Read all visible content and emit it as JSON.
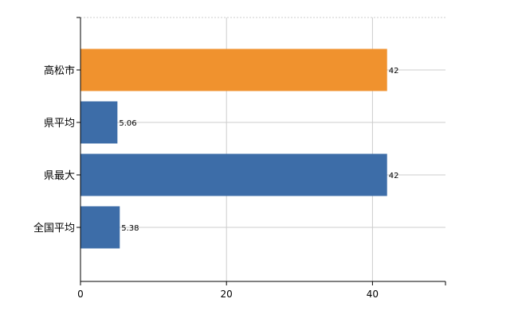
{
  "chart_data": {
    "type": "bar",
    "orientation": "horizontal",
    "categories": [
      "高松市",
      "県平均",
      "県最大",
      "全国平均"
    ],
    "values": [
      42,
      5.06,
      42,
      5.38
    ],
    "value_labels": [
      "42",
      "5.06",
      "42",
      "5.38"
    ],
    "bar_colors": [
      "#f0922e",
      "#3d6da8",
      "#3d6da8",
      "#3d6da8"
    ],
    "xlim": [
      0,
      50
    ],
    "xticks": [
      0,
      20,
      40
    ],
    "xtick_labels": [
      "0",
      "20",
      "40"
    ],
    "grid": true,
    "legend": "none"
  }
}
